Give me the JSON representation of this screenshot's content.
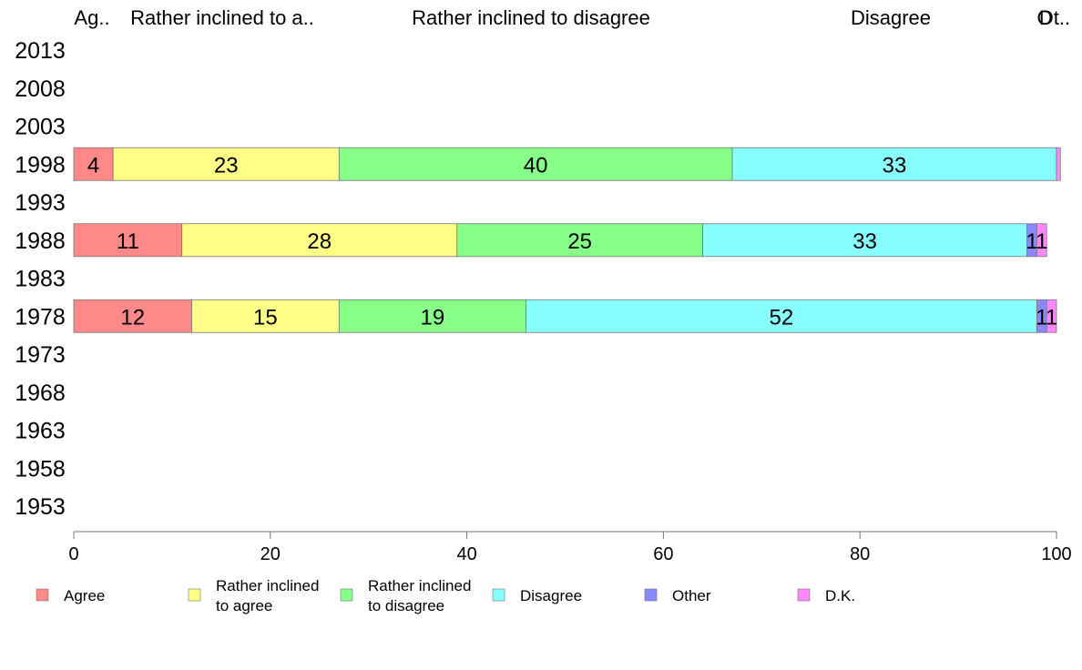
{
  "chart_data": {
    "type": "bar",
    "orientation": "horizontal",
    "stacked": true,
    "categories": [
      "2013",
      "2008",
      "2003",
      "1998",
      "1993",
      "1988",
      "1983",
      "1978",
      "1973",
      "1968",
      "1963",
      "1958",
      "1953"
    ],
    "series": [
      {
        "name": "Agree",
        "color": "#ff8888",
        "values": {
          "1998": 4,
          "1988": 11,
          "1978": 12
        }
      },
      {
        "name": "Rather inclined to agree",
        "color": "#ffff88",
        "values": {
          "1998": 23,
          "1988": 28,
          "1978": 15
        }
      },
      {
        "name": "Rather inclined to disagree",
        "color": "#88ff88",
        "values": {
          "1998": 40,
          "1988": 25,
          "1978": 19
        }
      },
      {
        "name": "Disagree",
        "color": "#88ffff",
        "values": {
          "1998": 33,
          "1988": 33,
          "1978": 52
        }
      },
      {
        "name": "Other",
        "color": "#8888ff",
        "values": {
          "1998": 0,
          "1988": 1,
          "1978": 1
        }
      },
      {
        "name": "D.K.",
        "color": "#ff88ff",
        "values": {
          "1998": 0.4,
          "1988": 1,
          "1978": 1
        }
      }
    ],
    "top_labels": [
      "Ag..",
      "Rather inclined to a..",
      "Rather inclined to disagree",
      "Disagree",
      "O",
      "Dt.."
    ],
    "legend_labels": [
      [
        "Agree"
      ],
      [
        "Rather inclined",
        "to agree"
      ],
      [
        "Rather inclined",
        "to disagree"
      ],
      [
        "Disagree"
      ],
      [
        "Other"
      ],
      [
        "D.K."
      ]
    ],
    "xlim": [
      0,
      100
    ],
    "xticks": [
      0,
      20,
      40,
      60,
      80,
      100
    ],
    "grid": false,
    "legend_position": "bottom"
  }
}
